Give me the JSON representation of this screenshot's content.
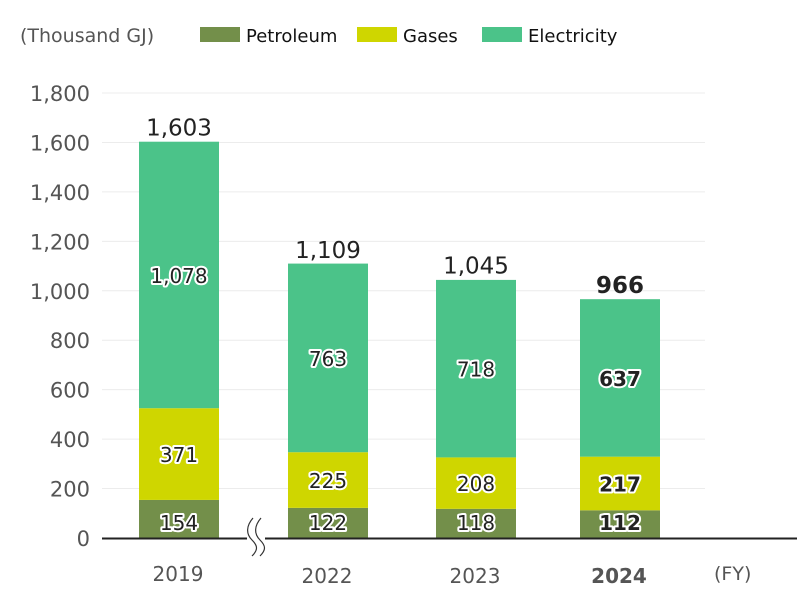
{
  "chart_data": {
    "type": "bar",
    "stacked": true,
    "title": "",
    "unit_label": "(Thousand GJ)",
    "xlabel": "(FY)",
    "ylabel": "",
    "ylim": [
      0,
      1800
    ],
    "yticks": [
      0,
      200,
      400,
      600,
      800,
      1000,
      1200,
      1400,
      1600,
      1800
    ],
    "ytick_labels": [
      "0",
      "200",
      "400",
      "600",
      "800",
      "1,000",
      "1,200",
      "1,400",
      "1,600",
      "1,800"
    ],
    "grid": true,
    "legend_position": "top",
    "axis_break_after": "2019",
    "highlight_category": "2024",
    "categories": [
      "2019",
      "2022",
      "2023",
      "2024"
    ],
    "series": [
      {
        "name": "Petroleum",
        "color": "#738f4a",
        "values": [
          154,
          122,
          118,
          112
        ],
        "labels": [
          "154",
          "122",
          "118",
          "112"
        ]
      },
      {
        "name": "Gases",
        "color": "#cfd600",
        "values": [
          371,
          225,
          208,
          217
        ],
        "labels": [
          "371",
          "225",
          "208",
          "217"
        ]
      },
      {
        "name": "Electricity",
        "color": "#4bc389",
        "values": [
          1078,
          763,
          718,
          637
        ],
        "labels": [
          "1,078",
          "763",
          "718",
          "637"
        ]
      }
    ],
    "totals": [
      1603,
      1109,
      1045,
      966
    ],
    "total_labels": [
      "1,603",
      "1,109",
      "1,045",
      "966"
    ]
  }
}
